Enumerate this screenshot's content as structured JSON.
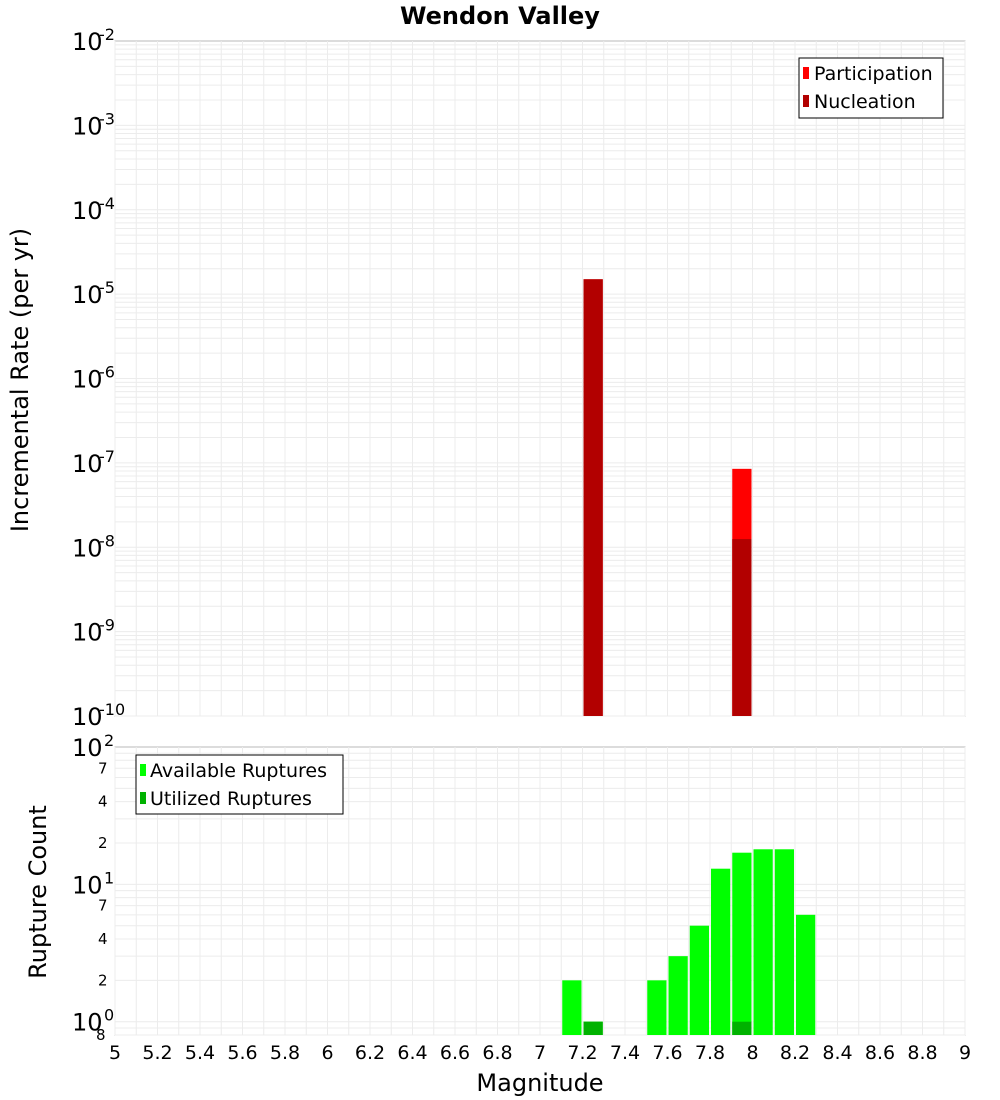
{
  "chart_data": [
    {
      "type": "bar",
      "title": "Wendon Valley",
      "xlabel": "",
      "ylabel": "Incremental Rate (per yr)",
      "xlim": [
        5,
        9
      ],
      "ylim": [
        1e-10,
        0.01
      ],
      "yscale": "log",
      "grid": true,
      "legend_position": "top-right",
      "bin_width": 0.1,
      "series": [
        {
          "name": "Participation",
          "color": "#ff0000",
          "x": [
            7.25,
            7.95
          ],
          "values": [
            1.5e-05,
            8.5e-08
          ]
        },
        {
          "name": "Nucleation",
          "color": "#b20000",
          "x": [
            7.25,
            7.95
          ],
          "values": [
            1.5e-05,
            1.25e-08
          ]
        }
      ]
    },
    {
      "type": "bar",
      "title": "",
      "xlabel": "Magnitude",
      "ylabel": "Rupture Count",
      "xlim": [
        5,
        9
      ],
      "ylim": [
        0.8,
        100
      ],
      "yscale": "log",
      "grid": true,
      "legend_position": "top-left",
      "bin_width": 0.1,
      "series": [
        {
          "name": "Available Ruptures",
          "color": "#00ff00",
          "x": [
            7.15,
            7.25,
            7.55,
            7.65,
            7.75,
            7.85,
            7.95,
            8.05,
            8.15,
            8.25
          ],
          "values": [
            2,
            1,
            2,
            3,
            5,
            13,
            17,
            18,
            18,
            6
          ]
        },
        {
          "name": "Utilized Ruptures",
          "color": "#00b200",
          "x": [
            7.25,
            7.95
          ],
          "values": [
            1,
            1
          ]
        }
      ]
    }
  ],
  "axes": {
    "x_ticks": [
      "5",
      "5.2",
      "5.4",
      "5.6",
      "5.8",
      "6",
      "6.2",
      "6.4",
      "6.6",
      "6.8",
      "7",
      "7.2",
      "7.4",
      "7.6",
      "7.8",
      "8",
      "8.2",
      "8.4",
      "8.6",
      "8.8",
      "9"
    ],
    "top_y_ticks": [
      {
        "base": "10",
        "exp": "-2"
      },
      {
        "base": "10",
        "exp": "-3"
      },
      {
        "base": "10",
        "exp": "-4"
      },
      {
        "base": "10",
        "exp": "-5"
      },
      {
        "base": "10",
        "exp": "-6"
      },
      {
        "base": "10",
        "exp": "-7"
      },
      {
        "base": "10",
        "exp": "-8"
      },
      {
        "base": "10",
        "exp": "-9"
      },
      {
        "base": "10",
        "exp": "-10"
      }
    ],
    "bottom_y_ticks": [
      {
        "base": "10",
        "exp": "2"
      },
      {
        "base": "10",
        "exp": "1"
      },
      {
        "base": "10",
        "exp": "0"
      }
    ],
    "bottom_minor_labels": [
      "7",
      "4",
      "2",
      "7",
      "4",
      "2",
      "8"
    ]
  }
}
